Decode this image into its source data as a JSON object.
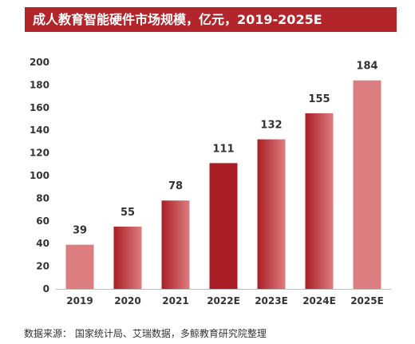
{
  "chart_data": {
    "type": "bar",
    "title": "成人教育智能硬件市场规模，亿元，2019-2025E",
    "categories": [
      "2019",
      "2020",
      "2021",
      "2022E",
      "2023E",
      "2024E",
      "2025E"
    ],
    "values": [
      39,
      55,
      78,
      111,
      132,
      155,
      184
    ],
    "ylim": [
      0,
      200
    ],
    "yticks": [
      0,
      20,
      40,
      60,
      80,
      100,
      120,
      140,
      160,
      180,
      200
    ],
    "xlabel": "",
    "ylabel": "",
    "grid": false,
    "data_labels": true,
    "colors": {
      "title_bg": "#b2262b",
      "bar_light": "#dc7d80",
      "bar_dark": "#a91e24"
    }
  },
  "source": "数据来源： 国家统计局、艾瑞数据，多鲸教育研究院整理"
}
